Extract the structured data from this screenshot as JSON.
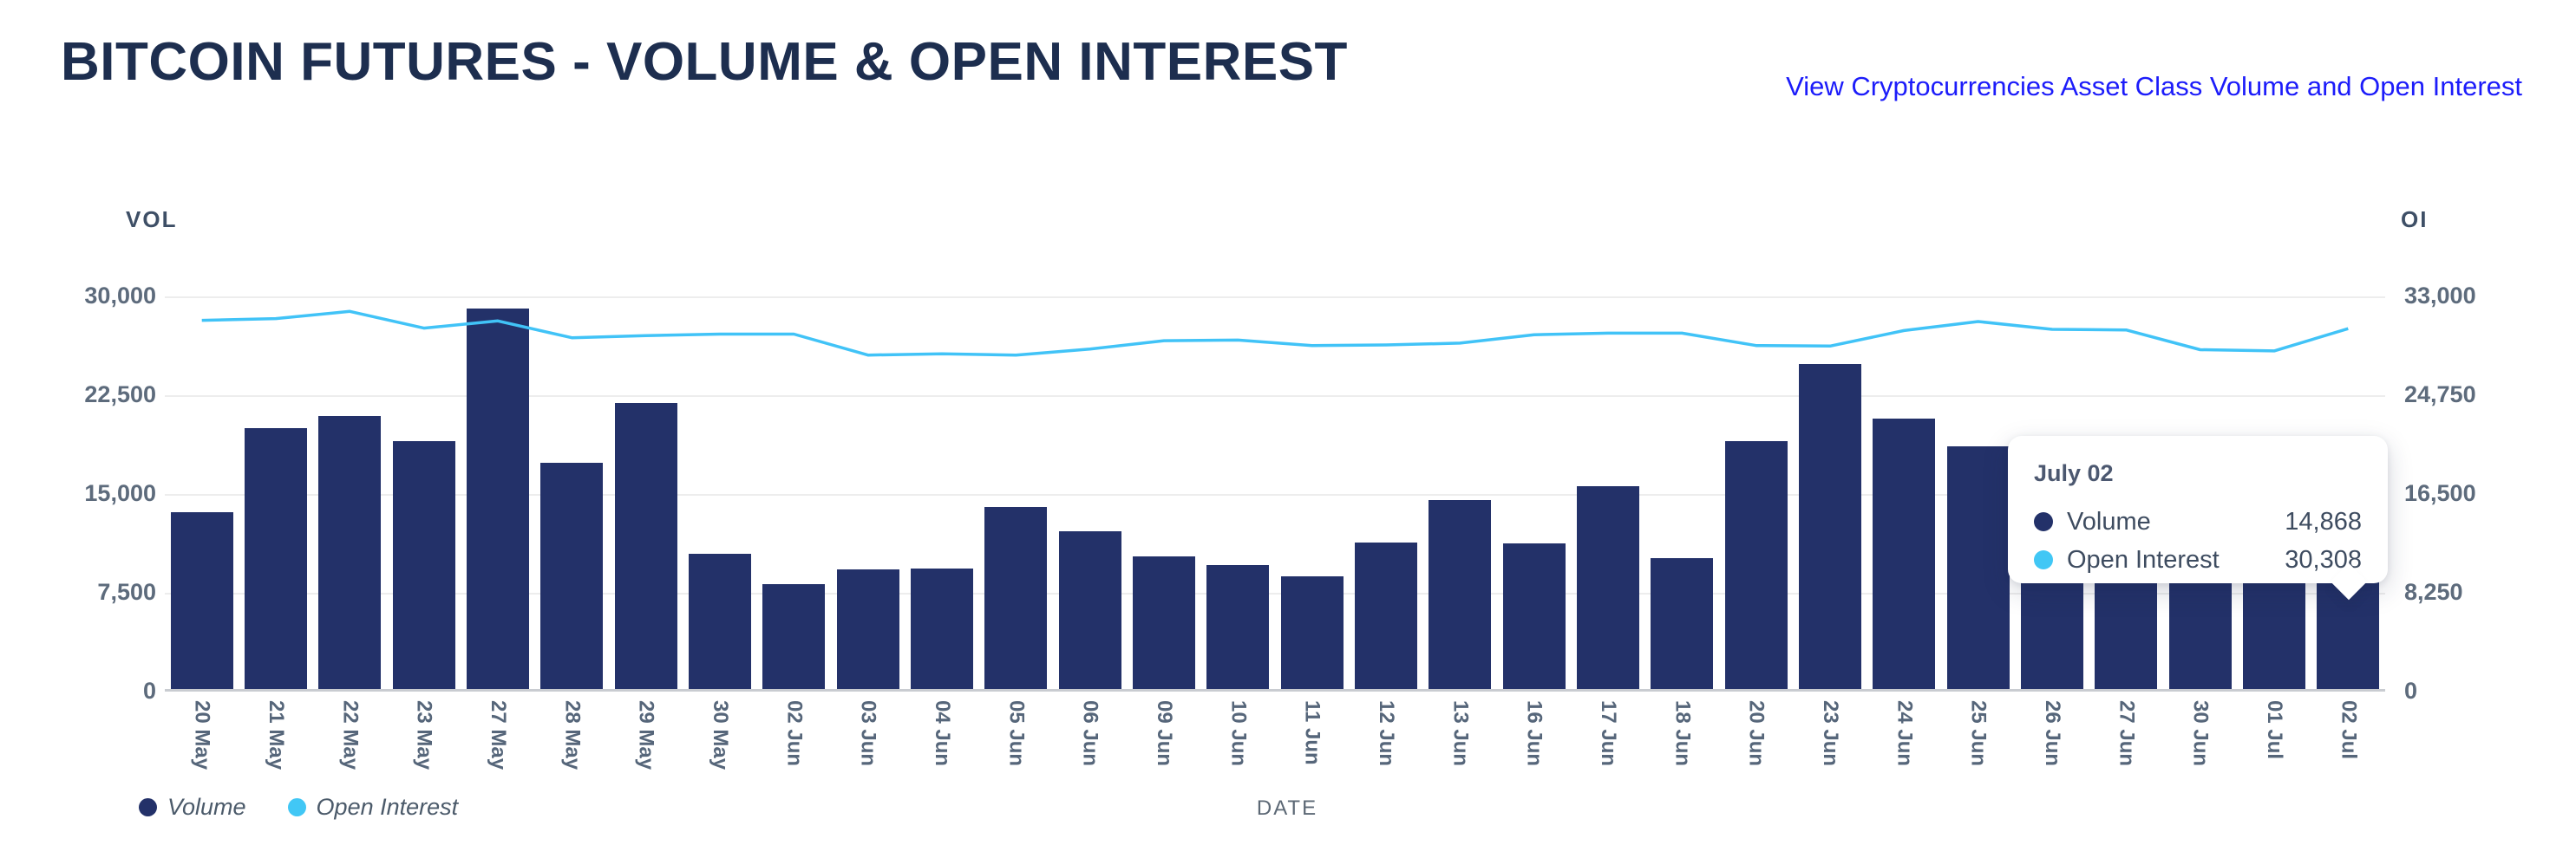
{
  "page": {
    "title": "BITCOIN FUTURES - VOLUME & OPEN INTEREST",
    "link": "View Cryptocurrencies Asset Class Volume and Open Interest"
  },
  "chart_data": {
    "type": "bar+line",
    "categories": [
      "20 May",
      "21 May",
      "22 May",
      "23 May",
      "27 May",
      "28 May",
      "29 May",
      "30 May",
      "02 Jun",
      "03 Jun",
      "04 Jun",
      "05 Jun",
      "06 Jun",
      "09 Jun",
      "10 Jun",
      "11 Jun",
      "12 Jun",
      "13 Jun",
      "16 Jun",
      "17 Jun",
      "18 Jun",
      "20 Jun",
      "23 Jun",
      "24 Jun",
      "25 Jun",
      "26 Jun",
      "27 Jun",
      "30 Jun",
      "01 Jul",
      "02 Jul"
    ],
    "series": [
      {
        "name": "Volume",
        "type": "bar",
        "axis": "left",
        "color": "#233169",
        "values": [
          13400,
          19800,
          20700,
          18800,
          28900,
          17200,
          21700,
          10250,
          7950,
          9100,
          9150,
          13800,
          11950,
          10050,
          9400,
          8550,
          11100,
          14350,
          11050,
          15400,
          9950,
          18800,
          24700,
          20500,
          18450,
          8250,
          8250,
          8200,
          8250,
          14868
        ]
      },
      {
        "name": "Open Interest",
        "type": "line",
        "axis": "right",
        "color": "#41c3f7",
        "values": [
          31000,
          31150,
          31750,
          30350,
          30950,
          29550,
          29720,
          29850,
          29850,
          28100,
          28200,
          28100,
          28600,
          29300,
          29350,
          28900,
          28950,
          29100,
          29800,
          29930,
          29930,
          28900,
          28850,
          30150,
          30900,
          30250,
          30200,
          28550,
          28450,
          30308
        ]
      }
    ],
    "left_axis": {
      "label": "VOL",
      "min": 0,
      "max": 30000,
      "ticks": [
        "30,000",
        "22,500",
        "15,000",
        "7,500",
        "0"
      ]
    },
    "right_axis": {
      "label": "OI",
      "min": 0,
      "max": 33000,
      "ticks": [
        "33,000",
        "24,750",
        "16,500",
        "8,250",
        "0"
      ]
    },
    "xlabel": "DATE",
    "grid": true,
    "legend_position": "bottom-left"
  },
  "tooltip": {
    "title": "July 02",
    "rows": [
      {
        "label": "Volume",
        "value": "14,868",
        "color": "#233169"
      },
      {
        "label": "Open Interest",
        "value": "30,308",
        "color": "#41c7f5"
      }
    ]
  },
  "colors": {
    "bar": "#233169",
    "line": "#41c3f7",
    "title": "#1d2e4f",
    "link": "#1c1cfa",
    "axis_text": "#5d6b7c",
    "grid": "#ededed",
    "baseline": "#c9ccd1"
  }
}
